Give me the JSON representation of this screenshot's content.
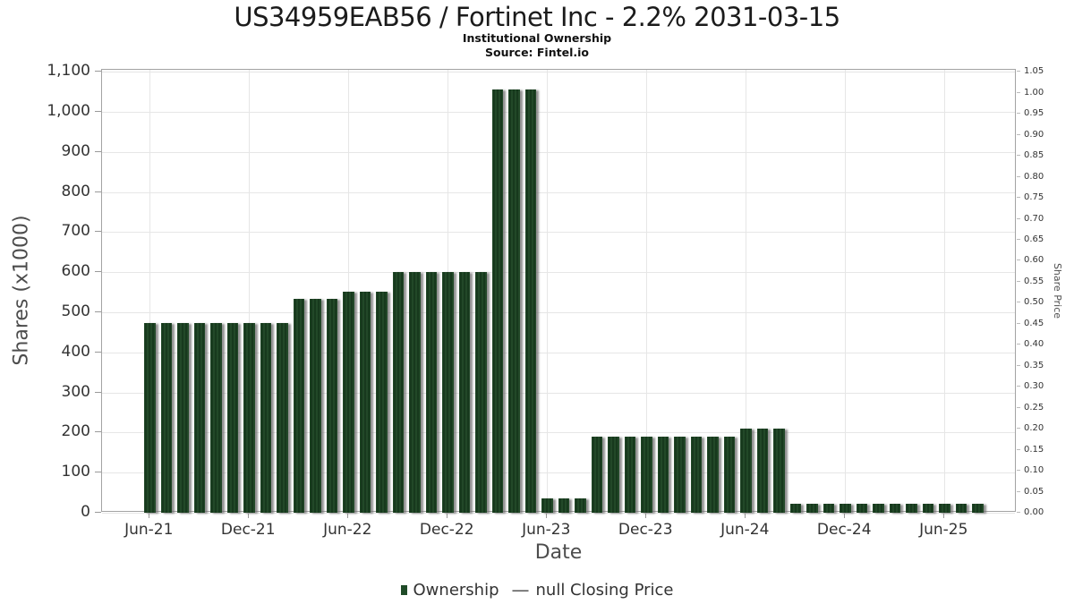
{
  "title": "US34959EAB56 / Fortinet Inc - 2.2% 2031-03-15",
  "subtitle": "Institutional Ownership",
  "source": "Source: Fintel.io",
  "colors": {
    "bar": "#17391d",
    "bar_stripe": "#2c5833",
    "bar_shadow": "#6c6c6c",
    "grid": "#e6e6e6",
    "frame": "#a3a3a3",
    "tick_text": "#333333",
    "axis_title_text": "#4d4d4d",
    "legend_square": "#1f4b28"
  },
  "chart_data": {
    "type": "bar",
    "title": "US34959EAB56 / Fortinet Inc - 2.2% 2031-03-15",
    "subtitle": "Institutional Ownership",
    "source": "Source: Fintel.io",
    "xlabel": "Date",
    "ylabel_left": "Shares (x1000)",
    "ylabel_right": "Share Price",
    "grid": true,
    "legend_position": "bottom-center",
    "ylim_left": [
      0,
      1105
    ],
    "ylim_right": [
      0,
      1.055
    ],
    "x": [
      "Jun-21",
      "Jul-21",
      "Aug-21",
      "Sep-21",
      "Oct-21",
      "Nov-21",
      "Dec-21",
      "Jan-22",
      "Feb-22",
      "Mar-22",
      "Apr-22",
      "May-22",
      "Jun-22",
      "Jul-22",
      "Aug-22",
      "Sep-22",
      "Oct-22",
      "Nov-22",
      "Dec-22",
      "Jan-23",
      "Feb-23",
      "Mar-23",
      "Apr-23",
      "May-23",
      "Jun-23",
      "Jul-23",
      "Aug-23",
      "Sep-23",
      "Oct-23",
      "Nov-23",
      "Dec-23",
      "Jan-24",
      "Feb-24",
      "Mar-24",
      "Apr-24",
      "May-24",
      "Jun-24",
      "Jul-24",
      "Aug-24",
      "Sep-24",
      "Oct-24",
      "Nov-24",
      "Dec-24",
      "Jan-25",
      "Feb-25",
      "Mar-25",
      "Apr-25",
      "May-25",
      "Jun-25",
      "Jul-25",
      "Aug-25"
    ],
    "values": [
      474,
      474,
      474,
      474,
      474,
      474,
      474,
      474,
      474,
      534,
      534,
      534,
      552,
      552,
      552,
      601,
      601,
      601,
      601,
      601,
      601,
      1056,
      1056,
      1056,
      36,
      36,
      36,
      190,
      190,
      190,
      190,
      190,
      190,
      190,
      190,
      190,
      210,
      210,
      210,
      22,
      22,
      22,
      22,
      22,
      22,
      22,
      22,
      22,
      22,
      22,
      22
    ],
    "series_name": "Ownership",
    "y_ticks_left": [
      "0",
      "100",
      "200",
      "300",
      "400",
      "500",
      "600",
      "700",
      "800",
      "900",
      "1,000",
      "1,100"
    ],
    "y_ticks_right": [
      "0.00",
      "0.05",
      "0.10",
      "0.15",
      "0.20",
      "0.25",
      "0.30",
      "0.35",
      "0.40",
      "0.45",
      "0.50",
      "0.55",
      "0.60",
      "0.65",
      "0.70",
      "0.75",
      "0.80",
      "0.85",
      "0.90",
      "0.95",
      "1.00",
      "1.05"
    ],
    "x_tick_labels": [
      "Jun-21",
      "Dec-21",
      "Jun-22",
      "Dec-22",
      "Jun-23",
      "Dec-23",
      "Jun-24",
      "Dec-24",
      "Jun-25"
    ],
    "x_tick_bar_indices": [
      0,
      6,
      12,
      18,
      24,
      30,
      36,
      42,
      48
    ],
    "legend": [
      {
        "symbol": "square",
        "color": "#1f4b28",
        "label": "Ownership"
      },
      {
        "symbol": "dash",
        "color": "#555555",
        "label": "null Closing Price"
      }
    ]
  }
}
